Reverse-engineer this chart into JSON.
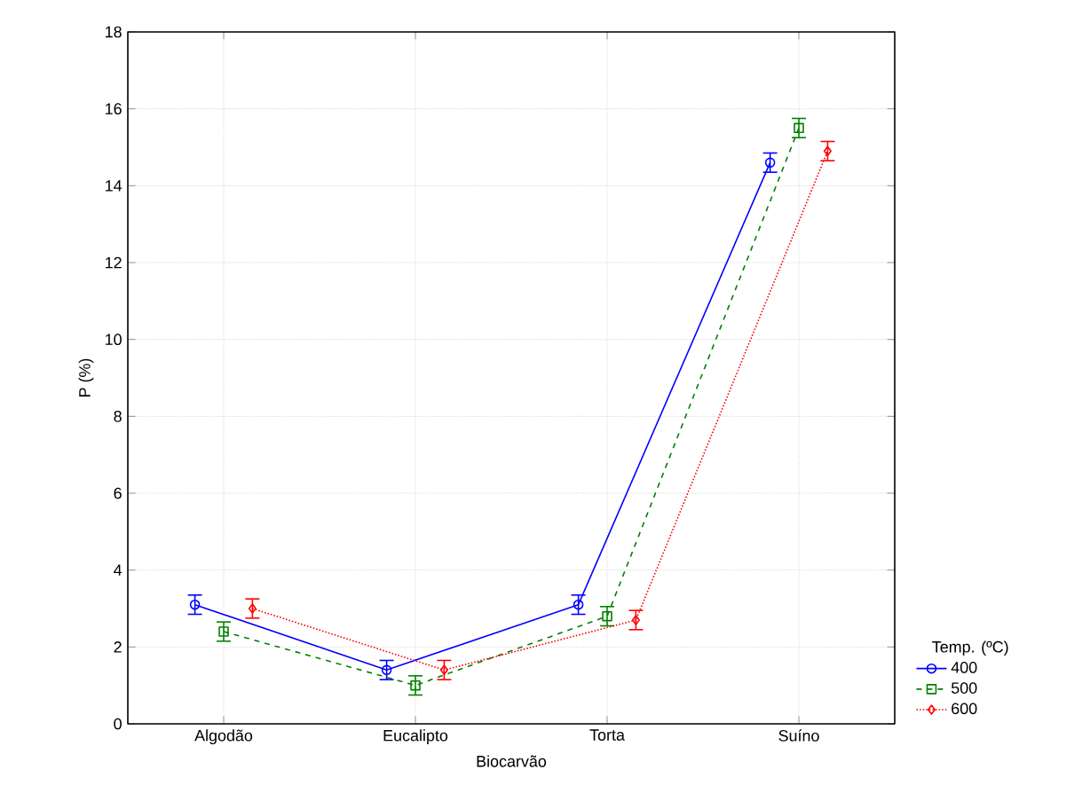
{
  "chart_data": {
    "type": "line",
    "xlabel": "Biocarvão",
    "ylabel": "P (%)",
    "legend_title": "Temp. (ºC)",
    "legend": "bottom right",
    "grid": true,
    "categories": [
      "Algodão",
      "Eucalipto",
      "Torta",
      "Suíno"
    ],
    "ylim": [
      0,
      18
    ],
    "yticks": [
      0,
      2,
      4,
      6,
      8,
      10,
      12,
      14,
      16,
      18
    ],
    "series": [
      {
        "name": "400",
        "color": "#0000ff",
        "marker": "circle",
        "line_style": "solid",
        "values": [
          3.1,
          1.4,
          3.1,
          14.6
        ],
        "errors": [
          0.25,
          0.25,
          0.25,
          0.25
        ]
      },
      {
        "name": "500",
        "color": "#008000",
        "marker": "square",
        "line_style": "dashed",
        "values": [
          2.4,
          1.0,
          2.8,
          15.5
        ],
        "errors": [
          0.25,
          0.25,
          0.25,
          0.25
        ]
      },
      {
        "name": "600",
        "color": "#ff0000",
        "marker": "diamond",
        "line_style": "dotted",
        "values": [
          3.0,
          1.4,
          2.7,
          14.9
        ],
        "errors": [
          0.25,
          0.25,
          0.25,
          0.25
        ]
      }
    ]
  }
}
